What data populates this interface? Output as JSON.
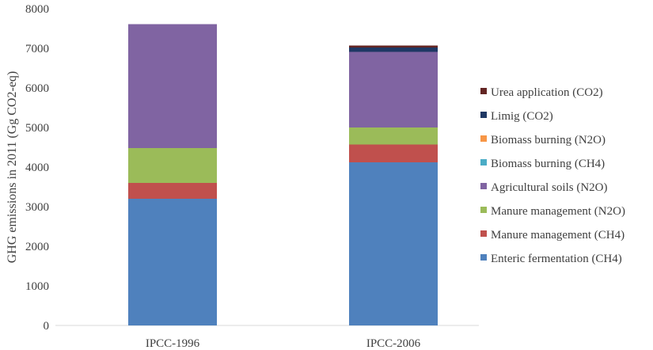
{
  "chart_data": {
    "type": "bar",
    "stacked": true,
    "title": "",
    "xlabel": "",
    "ylabel": "GHG emissions in 2011 (Gg CO2-eq)",
    "ylim": [
      0,
      8000
    ],
    "yticks": [
      0,
      1000,
      2000,
      3000,
      4000,
      5000,
      6000,
      7000,
      8000
    ],
    "grid": false,
    "legend_position": "right",
    "categories": [
      "IPCC-1996",
      "IPCC-2006"
    ],
    "series": [
      {
        "name": "Enteric fermentation (CH4)",
        "color": "#4f81bd",
        "values": [
          3200,
          4120
        ]
      },
      {
        "name": "Manure management (CH4)",
        "color": "#c0504d",
        "values": [
          400,
          450
        ]
      },
      {
        "name": "Manure management (N2O)",
        "color": "#9bbb59",
        "values": [
          880,
          430
        ]
      },
      {
        "name": "Agricultural soils (N2O)",
        "color": "#8064a2",
        "values": [
          3130,
          1910
        ]
      },
      {
        "name": "Biomass burning (CH4)",
        "color": "#4bacc6",
        "values": [
          0,
          0
        ]
      },
      {
        "name": "Biomass burning (N2O)",
        "color": "#f79646",
        "values": [
          0,
          0
        ]
      },
      {
        "name": "Limig (CO2)",
        "color": "#1f3864",
        "values": [
          0,
          110
        ]
      },
      {
        "name": "Urea application (CO2)",
        "color": "#632523",
        "values": [
          0,
          50
        ]
      }
    ]
  }
}
